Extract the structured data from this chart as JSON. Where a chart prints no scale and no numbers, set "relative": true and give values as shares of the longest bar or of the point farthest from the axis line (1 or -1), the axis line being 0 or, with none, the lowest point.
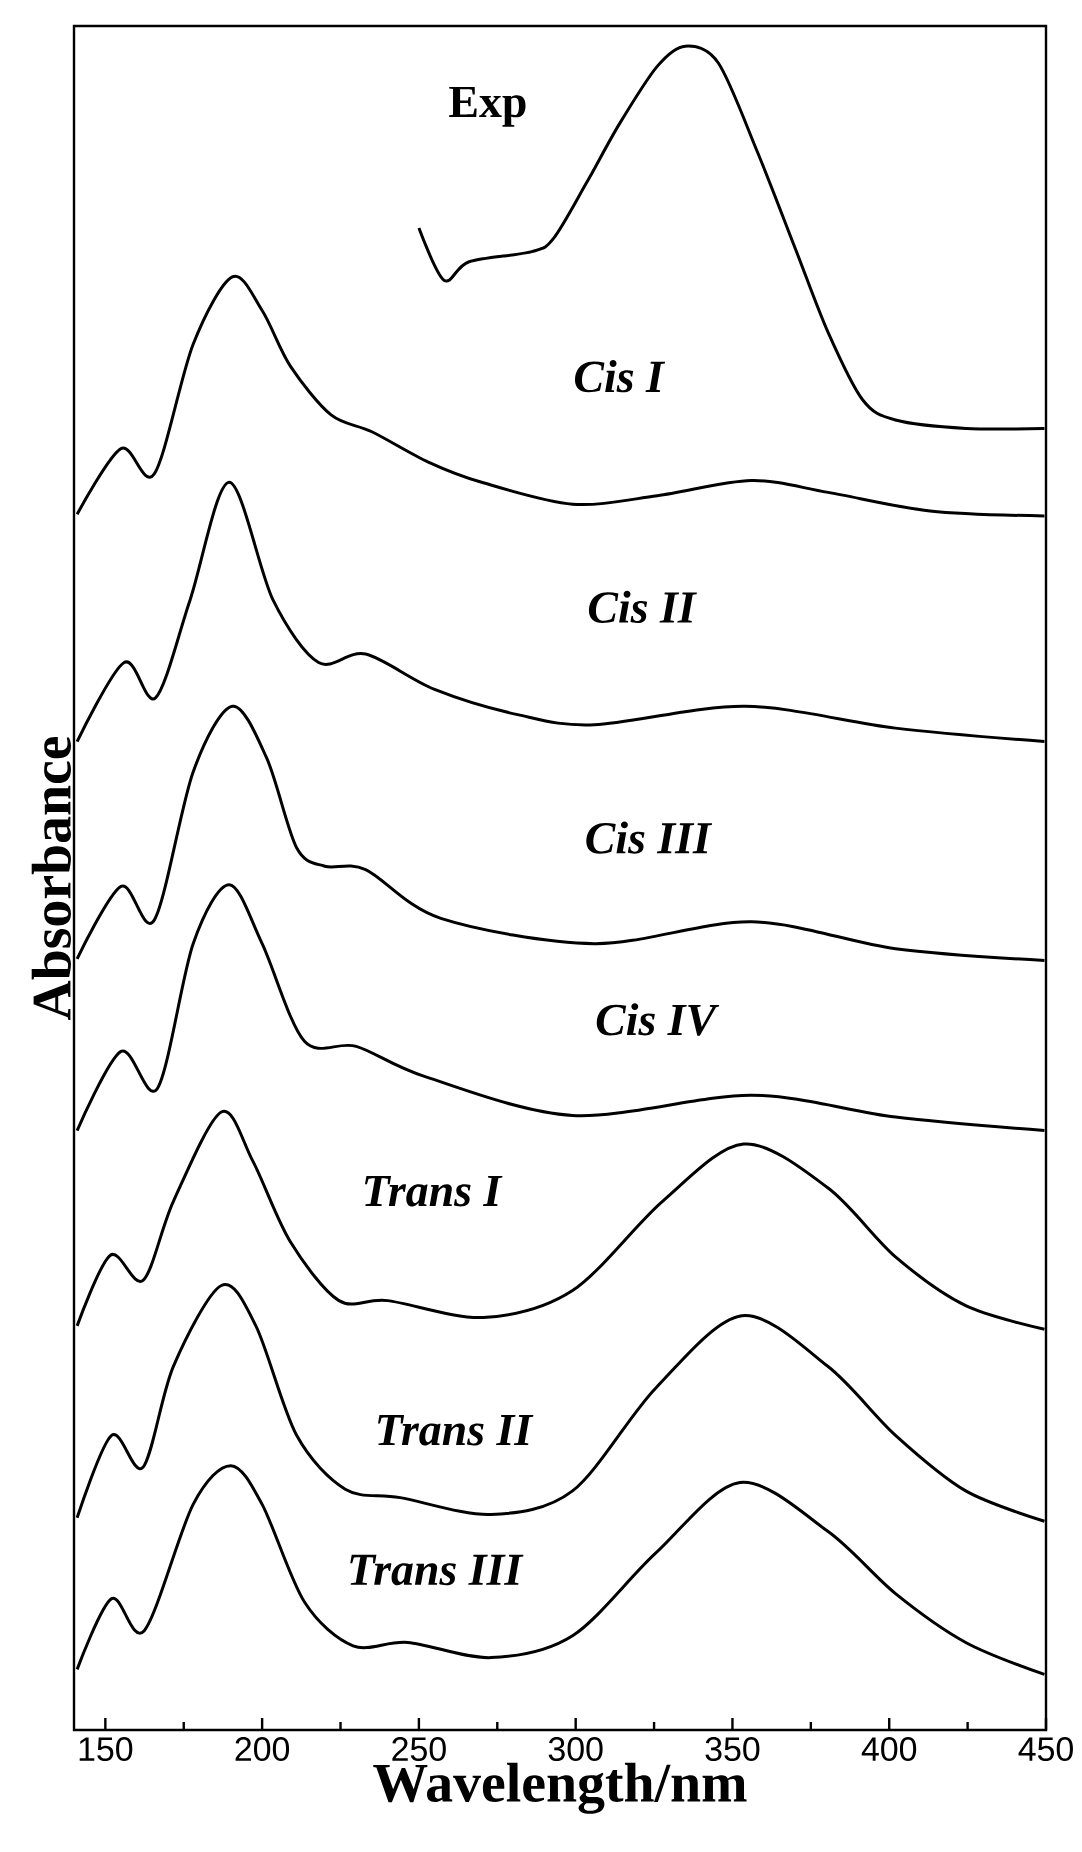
{
  "chart_data": {
    "type": "line",
    "relative": true,
    "xlabel": "Wavelength/nm",
    "ylabel": "Absorbance",
    "xlim": [
      140,
      450
    ],
    "xticks": [
      150,
      200,
      250,
      300,
      350,
      400,
      450
    ],
    "grid": false,
    "marker": "none",
    "line_style": "solid",
    "tick_labels": "x",
    "series": [
      {
        "name": "Exp",
        "color": "#000000",
        "x": [
          250,
          258,
          266,
          286,
          293,
          303.5,
          314,
          326,
          335,
          345.5,
          358,
          370,
          380.5,
          391.5,
          402,
          424.5,
          449.5
        ],
        "values": [
          0.892,
          0.861,
          0.872,
          0.878,
          0.886,
          0.919,
          0.954,
          0.988,
          1.0,
          0.99,
          0.937,
          0.88,
          0.83,
          0.79,
          0.778,
          0.773,
          0.773
        ]
      },
      {
        "name": "Cis I",
        "color": "#000000",
        "x": [
          141,
          155,
          165.6,
          178,
          190.5,
          200,
          209,
          222,
          235,
          253,
          270,
          299,
          326,
          356,
          380.5,
          413,
          449.5
        ],
        "values": [
          0.722,
          0.761,
          0.746,
          0.823,
          0.863,
          0.843,
          0.81,
          0.781,
          0.771,
          0.753,
          0.741,
          0.728,
          0.733,
          0.742,
          0.735,
          0.724,
          0.721
        ]
      },
      {
        "name": "Cis II",
        "color": "#000000",
        "x": [
          141,
          156,
          166,
          177,
          189.5,
          203.5,
          218,
          233,
          255,
          281.5,
          306,
          354,
          402,
          449.5
        ],
        "values": [
          0.587,
          0.634,
          0.613,
          0.671,
          0.741,
          0.671,
          0.634,
          0.639,
          0.618,
          0.603,
          0.597,
          0.608,
          0.595,
          0.587
        ]
      },
      {
        "name": "Cis III",
        "color": "#000000",
        "x": [
          141,
          155,
          165.6,
          178,
          190.5,
          201.5,
          211,
          220,
          233,
          257,
          306,
          356,
          402,
          449.5
        ],
        "values": [
          0.458,
          0.501,
          0.481,
          0.569,
          0.608,
          0.577,
          0.524,
          0.513,
          0.511,
          0.482,
          0.467,
          0.48,
          0.464,
          0.457
        ]
      },
      {
        "name": "Cis IV",
        "color": "#000000",
        "x": [
          141,
          155,
          166.6,
          178,
          189.5,
          200,
          213.5,
          230,
          252,
          299,
          356,
          402,
          449.5
        ],
        "values": [
          0.356,
          0.403,
          0.381,
          0.467,
          0.502,
          0.467,
          0.409,
          0.406,
          0.388,
          0.365,
          0.377,
          0.364,
          0.356
        ]
      },
      {
        "name": "Trans I",
        "color": "#000000",
        "x": [
          141,
          151.6,
          162,
          171.7,
          187,
          197,
          209,
          224.5,
          240,
          270.5,
          299,
          327.7,
          353.6,
          380.4,
          402,
          424.4,
          449.5
        ],
        "values": [
          0.24,
          0.282,
          0.267,
          0.314,
          0.367,
          0.338,
          0.29,
          0.255,
          0.255,
          0.245,
          0.261,
          0.314,
          0.348,
          0.322,
          0.281,
          0.252,
          0.238
        ]
      },
      {
        "name": "Trans II",
        "color": "#000000",
        "x": [
          141,
          152,
          162,
          171.7,
          187,
          198,
          211,
          226.5,
          244,
          273,
          299,
          325.5,
          353,
          380.4,
          402,
          424.4,
          449.5
        ],
        "values": [
          0.126,
          0.175,
          0.156,
          0.216,
          0.264,
          0.24,
          0.175,
          0.143,
          0.138,
          0.128,
          0.142,
          0.203,
          0.246,
          0.216,
          0.175,
          0.142,
          0.124
        ]
      },
      {
        "name": "Trans III",
        "color": "#000000",
        "x": [
          141,
          152,
          162.4,
          178,
          190,
          200,
          213.5,
          229,
          246.5,
          273,
          299,
          325.5,
          352.4,
          380.4,
          402,
          424.4,
          449.5
        ],
        "values": [
          0.036,
          0.078,
          0.059,
          0.134,
          0.157,
          0.134,
          0.076,
          0.05,
          0.052,
          0.043,
          0.056,
          0.105,
          0.147,
          0.118,
          0.081,
          0.052,
          0.033
        ]
      }
    ]
  }
}
